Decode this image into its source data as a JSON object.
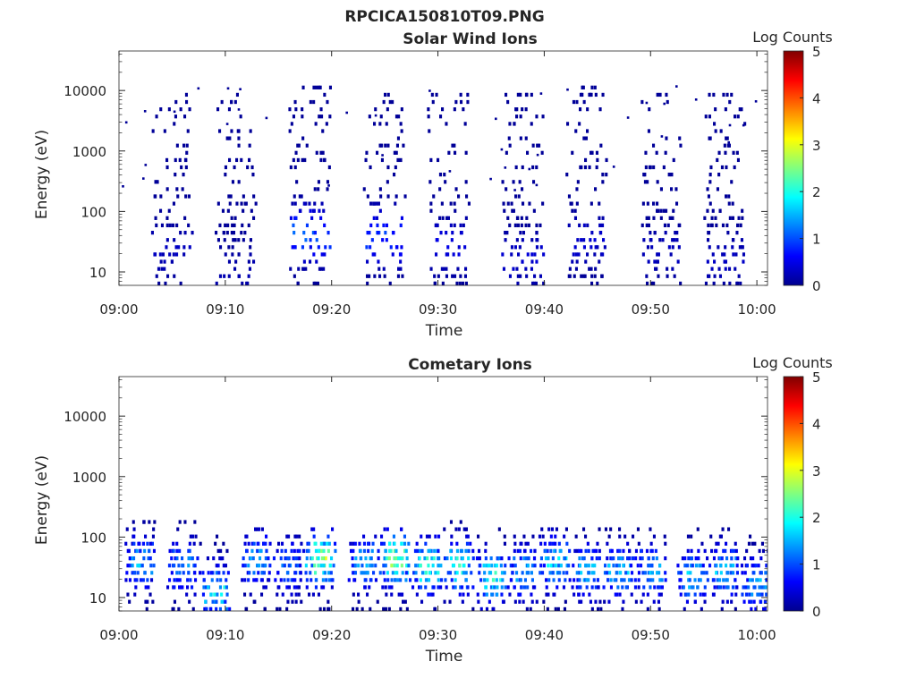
{
  "figure_title": "RPCICA150810T09.PNG",
  "colors": {
    "axis": "#262626",
    "colormap": [
      "#00008f",
      "#0000ff",
      "#0080ff",
      "#00ffff",
      "#80ff80",
      "#ffff00",
      "#ff8000",
      "#ff0000",
      "#800000"
    ]
  },
  "chart_data": [
    {
      "type": "heatmap",
      "title": "Solar Wind Ions",
      "xlabel": "Time",
      "ylabel": "Energy (eV)",
      "yscale": "log",
      "xlim": [
        "09:00",
        "10:01"
      ],
      "ylim": [
        6,
        45000
      ],
      "x_ticks": [
        "09:00",
        "09:10",
        "09:20",
        "09:30",
        "09:40",
        "09:50",
        "10:00"
      ],
      "y_ticks": [
        10,
        100,
        1000,
        10000
      ],
      "y_tick_labels": [
        "10",
        "100",
        "1000",
        "10000"
      ],
      "colorbar": {
        "label": "Log Counts",
        "range": [
          0,
          5
        ],
        "ticks": [
          "0",
          "1",
          "2",
          "3",
          "4",
          "5"
        ]
      },
      "bursts": [
        {
          "center": "09:05",
          "e_max": 10000,
          "peak_energy": 20,
          "peak_log_counts": 0.3
        },
        {
          "center": "09:11",
          "e_max": 9000,
          "peak_energy": 10,
          "peak_log_counts": 0.2
        },
        {
          "center": "09:18",
          "e_max": 11000,
          "peak_energy": 40,
          "peak_log_counts": 1.1
        },
        {
          "center": "09:25",
          "e_max": 9000,
          "peak_energy": 35,
          "peak_log_counts": 1.0
        },
        {
          "center": "09:31",
          "e_max": 10000,
          "peak_energy": 25,
          "peak_log_counts": 0.5
        },
        {
          "center": "09:38",
          "e_max": 8000,
          "peak_energy": 15,
          "peak_log_counts": 0.4
        },
        {
          "center": "09:44",
          "e_max": 12000,
          "peak_energy": 30,
          "peak_log_counts": 0.4
        },
        {
          "center": "09:51",
          "e_max": 9000,
          "peak_energy": 20,
          "peak_log_counts": 0.3
        },
        {
          "center": "09:57",
          "e_max": 10000,
          "peak_energy": 15,
          "peak_log_counts": 0.3
        }
      ]
    },
    {
      "type": "heatmap",
      "title": "Cometary Ions",
      "xlabel": "Time",
      "ylabel": "Energy (eV)",
      "yscale": "log",
      "xlim": [
        "09:00",
        "10:01"
      ],
      "ylim": [
        6,
        45000
      ],
      "x_ticks": [
        "09:00",
        "09:10",
        "09:20",
        "09:30",
        "09:40",
        "09:50",
        "10:00"
      ],
      "y_ticks": [
        10,
        100,
        1000,
        10000
      ],
      "y_tick_labels": [
        "10",
        "100",
        "1000",
        "10000"
      ],
      "colorbar": {
        "label": "Log Counts",
        "range": [
          0,
          5
        ],
        "ticks": [
          "0",
          "1",
          "2",
          "3",
          "4",
          "5"
        ]
      },
      "bursts": [
        {
          "center": "09:02",
          "e_max": 180,
          "peak_energy": 35,
          "peak_log_counts": 1.6
        },
        {
          "center": "09:06",
          "e_max": 180,
          "peak_energy": 30,
          "peak_log_counts": 1.4
        },
        {
          "center": "09:09",
          "e_max": 120,
          "peak_energy": 12,
          "peak_log_counts": 1.9
        },
        {
          "center": "09:13",
          "e_max": 150,
          "peak_energy": 40,
          "peak_log_counts": 1.5
        },
        {
          "center": "09:16",
          "e_max": 120,
          "peak_energy": 30,
          "peak_log_counts": 1.3
        },
        {
          "center": "09:19",
          "e_max": 140,
          "peak_energy": 40,
          "peak_log_counts": 2.8
        },
        {
          "center": "09:23",
          "e_max": 110,
          "peak_energy": 35,
          "peak_log_counts": 1.6
        },
        {
          "center": "09:26",
          "e_max": 150,
          "peak_energy": 40,
          "peak_log_counts": 2.7
        },
        {
          "center": "09:29",
          "e_max": 160,
          "peak_energy": 30,
          "peak_log_counts": 2.3
        },
        {
          "center": "09:32",
          "e_max": 170,
          "peak_energy": 30,
          "peak_log_counts": 2.2
        },
        {
          "center": "09:35",
          "e_max": 130,
          "peak_energy": 20,
          "peak_log_counts": 2.1
        },
        {
          "center": "09:38",
          "e_max": 120,
          "peak_energy": 25,
          "peak_log_counts": 1.6
        },
        {
          "center": "09:41",
          "e_max": 150,
          "peak_energy": 35,
          "peak_log_counts": 1.8
        },
        {
          "center": "09:44",
          "e_max": 130,
          "peak_energy": 25,
          "peak_log_counts": 1.6
        },
        {
          "center": "09:47",
          "e_max": 160,
          "peak_energy": 25,
          "peak_log_counts": 1.7
        },
        {
          "center": "09:50",
          "e_max": 140,
          "peak_energy": 25,
          "peak_log_counts": 1.6
        },
        {
          "center": "09:54",
          "e_max": 150,
          "peak_energy": 20,
          "peak_log_counts": 1.7
        },
        {
          "center": "09:57",
          "e_max": 160,
          "peak_energy": 25,
          "peak_log_counts": 1.6
        },
        {
          "center": "10:00",
          "e_max": 120,
          "peak_energy": 15,
          "peak_log_counts": 1.6
        }
      ]
    }
  ]
}
